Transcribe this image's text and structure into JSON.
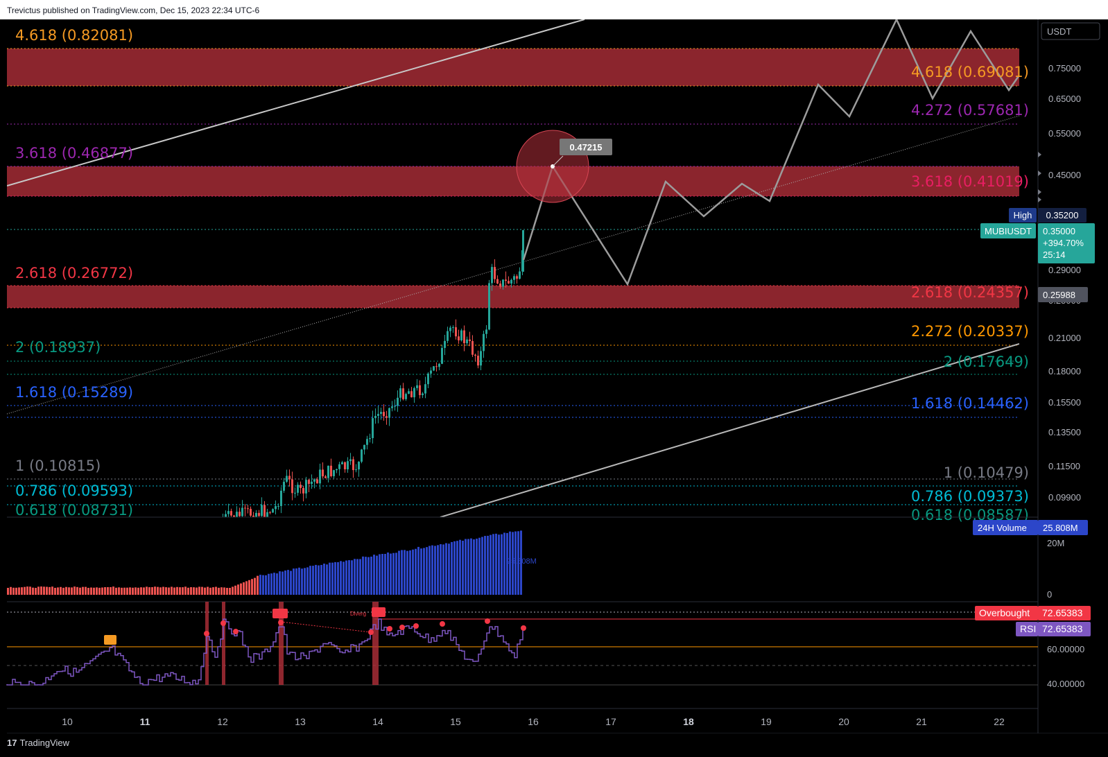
{
  "header": {
    "published_text": "Trevictus published on TradingView.com, Dec 15, 2023 22:34 UTC-6"
  },
  "footer": {
    "brand": "TradingView",
    "logo_mark": "17"
  },
  "price_axis": {
    "currency": "USDT",
    "ticks": [
      "0.75000",
      "0.65000",
      "0.55000",
      "0.45000",
      "0.29000",
      "0.25000",
      "0.21000",
      "0.18000",
      "0.15500",
      "0.13500",
      "0.11500",
      "0.09900"
    ]
  },
  "time_axis": {
    "labels": [
      "10",
      "11",
      "12",
      "13",
      "14",
      "15",
      "16",
      "17",
      "18",
      "19",
      "20",
      "21",
      "22"
    ],
    "bold": [
      "11",
      "18"
    ]
  },
  "fib_left": [
    {
      "label": "4.618 (0.82081)",
      "color": "#f59a23"
    },
    {
      "label": "3.618 (0.46877)",
      "color": "#9c27b0"
    },
    {
      "label": "2.618 (0.26772)",
      "color": "#f23645"
    },
    {
      "label": "2 (0.18937)",
      "color": "#089981"
    },
    {
      "label": "1.618 (0.15289)",
      "color": "#2962ff"
    },
    {
      "label": "1 (0.10815)",
      "color": "#787b86"
    },
    {
      "label": "0.786 (0.09593)",
      "color": "#00bcd4"
    },
    {
      "label": "0.618 (0.08731)",
      "color": "#089981"
    }
  ],
  "fib_right": [
    {
      "label": "4.618 (0.69081)",
      "color": "#f59a23"
    },
    {
      "label": "4.272 (0.57681)",
      "color": "#9c27b0"
    },
    {
      "label": "3.618 (0.41019)",
      "color": "#e91e63"
    },
    {
      "label": "2.618 (0.24357)",
      "color": "#f23645"
    },
    {
      "label": "2.272 (0.20337)",
      "color": "#ff9800"
    },
    {
      "label": "2 (0.17649)",
      "color": "#089981"
    },
    {
      "label": "1.618 (0.14462)",
      "color": "#2962ff"
    },
    {
      "label": "1 (0.10479)",
      "color": "#787b86"
    },
    {
      "label": "0.786 (0.09373)",
      "color": "#00bcd4"
    },
    {
      "label": "0.618 (0.08587)",
      "color": "#089981"
    }
  ],
  "annotations": {
    "target_price": "0.47215",
    "rsi_divergence": "Diverg"
  },
  "price_tags": {
    "high_label": "High",
    "high_value": "0.35200",
    "symbol": "MUBIUSDT",
    "last_price": "0.35000",
    "change": "+394.70%",
    "countdown": "25:14",
    "crosshair": "0.25988"
  },
  "volume_panel": {
    "legend": "24H Volume",
    "value": "25.808M",
    "axis_20m": "20M",
    "axis_0": "0",
    "inline_label": "25.808M"
  },
  "rsi_panel": {
    "overbought_label": "Overbought",
    "overbought_value": "72.65383",
    "rsi_label": "RSI",
    "rsi_value": "72.65383",
    "tick_60": "60.00000",
    "tick_40": "40.00000"
  },
  "colors": {
    "zone": "#b2303a",
    "up": "#26a69a",
    "down": "#ef5350",
    "volume": "#2c46c9",
    "rsi": "#7e57c2",
    "projection": "#9c9c9c"
  },
  "chart_data": {
    "type": "line",
    "symbol": "MUBIUSDT",
    "y_scale": "log",
    "ylim": [
      0.088,
      0.84
    ],
    "x_labels": [
      "10",
      "11",
      "12",
      "13",
      "14",
      "15",
      "16",
      "17",
      "18",
      "19",
      "20",
      "21",
      "22"
    ],
    "last_price": 0.35,
    "high": 0.352,
    "projection": {
      "x": [
        "16.2",
        "17.3",
        "18.0",
        "18.6",
        "19.0",
        "19.3",
        "19.7",
        "20.2",
        "20.6",
        "21.1",
        "21.6",
        "22.0",
        "22.3",
        "22.6"
      ],
      "y": [
        0.47215,
        0.27,
        0.44,
        0.35,
        0.43,
        0.38,
        0.69,
        0.57,
        0.96,
        0.66,
        0.87,
        0.68,
        0.78,
        0.68
      ]
    },
    "volume_axis": [
      "0",
      "20M"
    ],
    "rsi_axis": [
      "40.00000",
      "60.00000"
    ],
    "rsi_last": 72.65383
  }
}
